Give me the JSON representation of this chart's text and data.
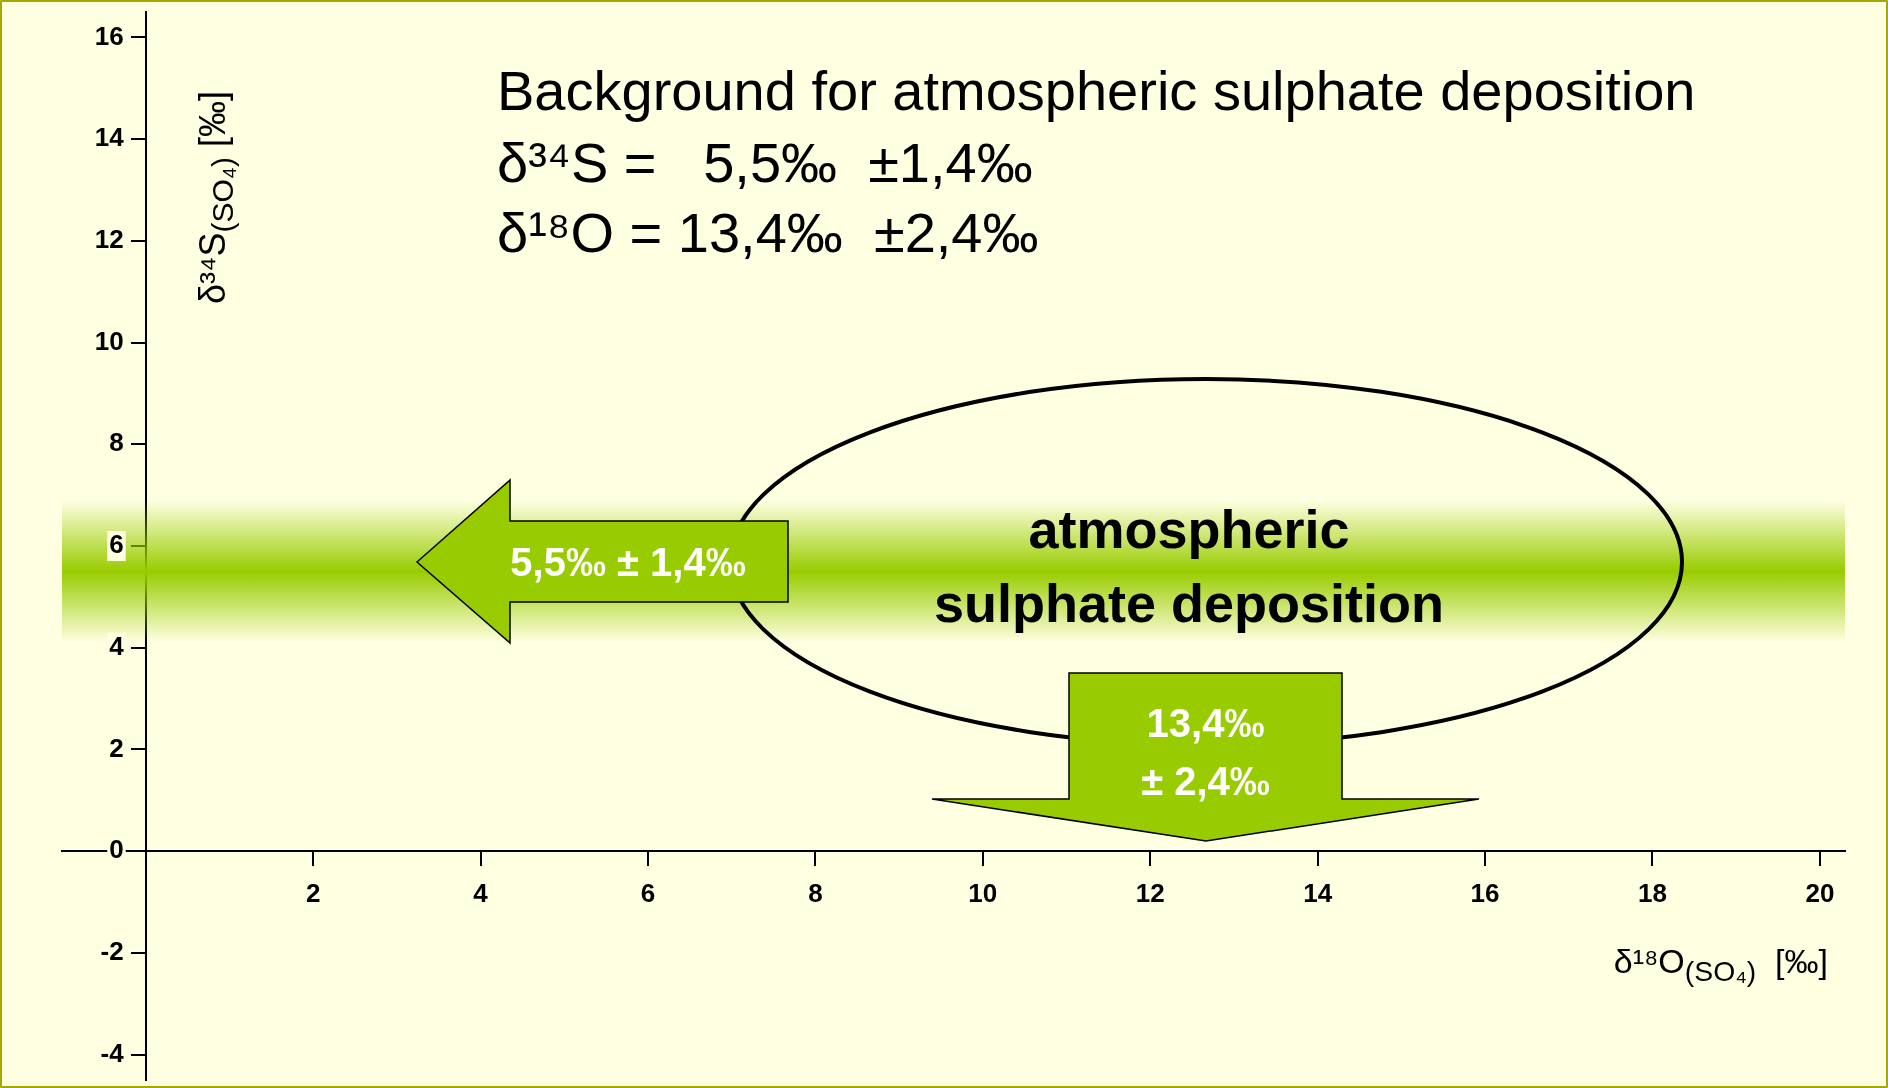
{
  "chart_data": {
    "type": "scatter",
    "xlabel": "δ¹⁸O$_{(SO₄)}$  [‰]",
    "ylabel": "δ³⁴S$_{(SO₄)}$ [‰]",
    "xlim": [
      -1,
      20.3
    ],
    "ylim": [
      -4.5,
      16.5
    ],
    "xticks": [
      {
        "value": 0,
        "label": null
      },
      2,
      4,
      6,
      8,
      10,
      12,
      14,
      16,
      18,
      20
    ],
    "yticks": [
      -4,
      -2,
      0,
      2,
      4,
      6,
      8,
      10,
      12,
      14,
      16
    ],
    "bands": [
      {
        "axis": "y",
        "from": 4.1,
        "to": 6.9,
        "color": "#99cc00"
      }
    ],
    "annotations": [
      "Background for atmospheric sulphate deposition",
      "δ³⁴S =   5,5‰  ±1,4‰",
      "δ¹⁸O = 13,4‰  ±2,4‰",
      "5,5‰ ± 1,4‰",
      "13,4‰\n± 2,4‰",
      "atmospheric sulphate deposition"
    ]
  }
}
